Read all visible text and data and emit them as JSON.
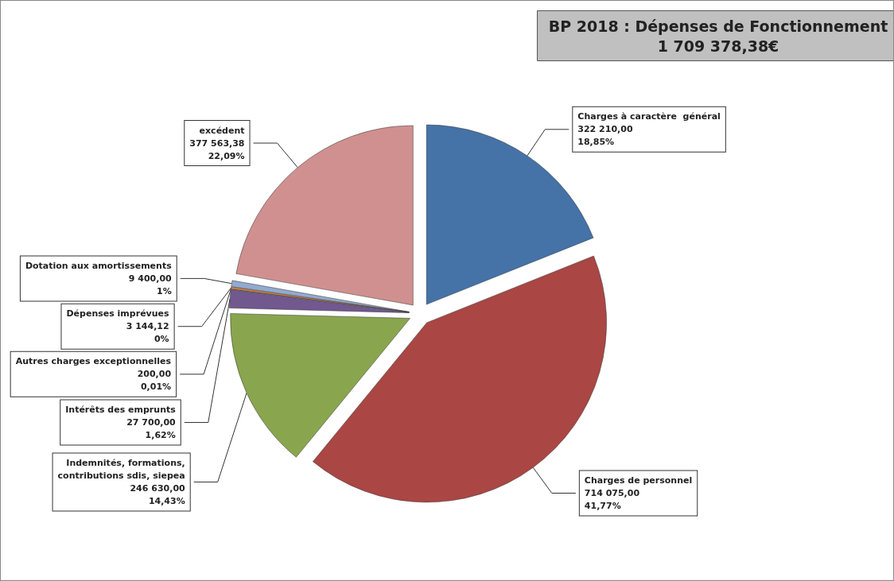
{
  "chart_data": {
    "type": "pie",
    "title": "BP 2018 : Dépenses de Fonctionnement",
    "subtitle": "1 709 378,38€",
    "categories": [
      "Charges à caractère  général",
      "Charges de personnel",
      "Indemnités, formations,\ncontributions sdis, siepea",
      "Intérêts des emprunts",
      "Autres charges exceptionnelles",
      "Dépenses imprévues",
      "Dotation aux amortissements",
      "excédent"
    ],
    "values": [
      322210,
      714075,
      246630,
      27700,
      200,
      3144.12,
      9400,
      377563.38
    ],
    "value_labels": [
      "322 210,00\n18,85%",
      "714 075,00\n41,77%",
      "246 630,00\n14,43%",
      "27 700,00\n1,62%",
      "200,00\n0,01%",
      "3 144,12\n0%",
      "9 400,00\n1%",
      "377 563,38\n22,09%"
    ],
    "colors": [
      "#4572a7",
      "#aa4643",
      "#89a54e",
      "#71588f",
      "#4198af",
      "#db843d",
      "#93a9cf",
      "#d09090"
    ],
    "legend": false
  }
}
